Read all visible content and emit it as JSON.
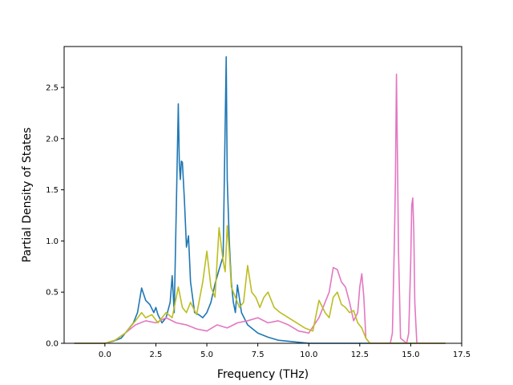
{
  "chart_data": {
    "type": "line",
    "xlabel": "Frequency (THz)",
    "ylabel": "Partial Density of States",
    "xlim": [
      -2.0,
      17.5
    ],
    "ylim": [
      0,
      2.9
    ],
    "grid": false,
    "xticks": [
      0.0,
      2.5,
      5.0,
      7.5,
      10.0,
      12.5,
      15.0,
      17.5
    ],
    "xtick_labels": [
      "0.0",
      "2.5",
      "5.0",
      "7.5",
      "10.0",
      "12.5",
      "15.0",
      "17.5"
    ],
    "yticks": [
      0.0,
      0.5,
      1.0,
      1.5,
      2.0,
      2.5
    ],
    "ytick_labels": [
      "0.0",
      "0.5",
      "1.0",
      "1.5",
      "2.0",
      "2.5"
    ],
    "series": [
      {
        "color": "#1f77b4",
        "x": [
          -1.5,
          0.0,
          0.4,
          0.8,
          1.0,
          1.2,
          1.4,
          1.6,
          1.8,
          2.0,
          2.2,
          2.4,
          2.5,
          2.6,
          2.8,
          3.0,
          3.2,
          3.3,
          3.4,
          3.5,
          3.6,
          3.65,
          3.7,
          3.75,
          3.8,
          3.9,
          4.0,
          4.1,
          4.2,
          4.4,
          4.6,
          4.8,
          5.0,
          5.2,
          5.4,
          5.6,
          5.8,
          5.95,
          6.0,
          6.1,
          6.2,
          6.3,
          6.4,
          6.5,
          6.7,
          7.0,
          7.5,
          8.0,
          8.5,
          9.0,
          10.0,
          16.7
        ],
        "y": [
          0.0,
          0.0,
          0.02,
          0.05,
          0.1,
          0.15,
          0.2,
          0.3,
          0.54,
          0.42,
          0.38,
          0.3,
          0.35,
          0.28,
          0.2,
          0.25,
          0.4,
          0.66,
          0.3,
          1.3,
          2.34,
          1.76,
          1.6,
          1.78,
          1.77,
          1.4,
          0.94,
          1.05,
          0.6,
          0.3,
          0.28,
          0.25,
          0.3,
          0.4,
          0.58,
          0.72,
          0.85,
          2.8,
          1.6,
          1.0,
          0.6,
          0.4,
          0.3,
          0.57,
          0.3,
          0.18,
          0.1,
          0.06,
          0.03,
          0.02,
          0.0,
          0.0
        ]
      },
      {
        "color": "#e377c2",
        "x": [
          -1.5,
          0.0,
          0.5,
          1.0,
          1.5,
          2.0,
          2.5,
          3.0,
          3.5,
          4.0,
          4.5,
          5.0,
          5.5,
          6.0,
          6.5,
          7.0,
          7.5,
          8.0,
          8.5,
          9.0,
          9.5,
          10.0,
          10.5,
          11.0,
          11.2,
          11.4,
          11.6,
          11.8,
          12.0,
          12.2,
          12.4,
          12.5,
          12.6,
          12.7,
          12.8,
          13.0,
          13.5,
          14.0,
          14.1,
          14.2,
          14.25,
          14.3,
          14.35,
          14.4,
          14.5,
          14.8,
          14.9,
          15.0,
          15.05,
          15.1,
          15.15,
          15.2,
          15.3,
          16.7
        ],
        "y": [
          0.0,
          0.0,
          0.03,
          0.1,
          0.18,
          0.22,
          0.2,
          0.25,
          0.2,
          0.18,
          0.14,
          0.12,
          0.18,
          0.15,
          0.2,
          0.22,
          0.25,
          0.2,
          0.22,
          0.18,
          0.12,
          0.1,
          0.25,
          0.5,
          0.74,
          0.72,
          0.6,
          0.55,
          0.4,
          0.22,
          0.3,
          0.55,
          0.68,
          0.45,
          0.05,
          0.0,
          0.0,
          0.0,
          0.1,
          1.0,
          1.6,
          2.63,
          1.8,
          0.9,
          0.05,
          0.0,
          0.1,
          0.8,
          1.35,
          1.42,
          1.1,
          0.4,
          0.0,
          0.0
        ]
      },
      {
        "color": "#bcbd22",
        "x": [
          -1.5,
          0.0,
          0.5,
          1.0,
          1.5,
          1.8,
          2.0,
          2.3,
          2.6,
          3.0,
          3.3,
          3.6,
          3.8,
          4.0,
          4.2,
          4.5,
          4.8,
          5.0,
          5.2,
          5.4,
          5.6,
          5.8,
          5.9,
          6.0,
          6.1,
          6.2,
          6.4,
          6.6,
          6.8,
          7.0,
          7.2,
          7.4,
          7.6,
          7.8,
          8.0,
          8.3,
          8.6,
          9.0,
          9.4,
          9.8,
          10.2,
          10.5,
          10.8,
          11.0,
          11.2,
          11.4,
          11.6,
          11.8,
          12.0,
          12.2,
          12.4,
          12.6,
          12.8,
          13.0,
          16.7
        ],
        "y": [
          0.0,
          0.0,
          0.03,
          0.1,
          0.22,
          0.3,
          0.25,
          0.28,
          0.2,
          0.3,
          0.25,
          0.55,
          0.35,
          0.3,
          0.4,
          0.28,
          0.6,
          0.9,
          0.55,
          0.45,
          1.13,
          0.8,
          0.7,
          1.15,
          0.9,
          0.55,
          0.45,
          0.35,
          0.4,
          0.76,
          0.5,
          0.45,
          0.35,
          0.45,
          0.5,
          0.35,
          0.3,
          0.25,
          0.2,
          0.15,
          0.12,
          0.42,
          0.3,
          0.25,
          0.45,
          0.5,
          0.38,
          0.35,
          0.3,
          0.32,
          0.2,
          0.15,
          0.05,
          0.0,
          0.0
        ]
      }
    ]
  }
}
